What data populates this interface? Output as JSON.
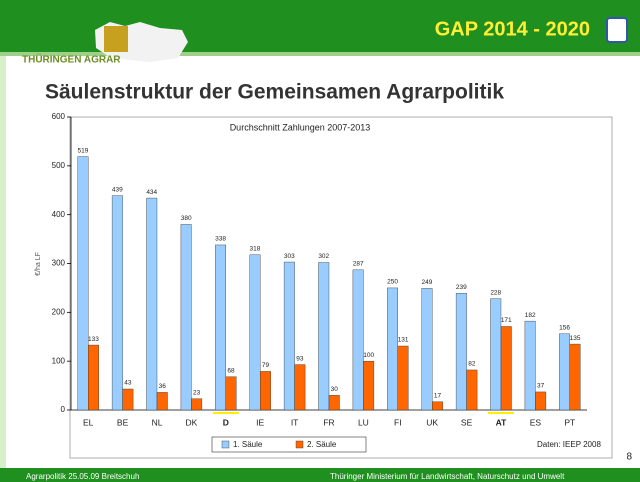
{
  "header": {
    "logo_text": "THÜRINGEN AGRAR",
    "title": "GAP 2014 - 2020"
  },
  "slide_title": "Säulenstruktur der Gemeinsamen Agrarpolitik",
  "chart_data": {
    "type": "bar",
    "subtitle": "Durchschnitt Zahlungen 2007-2013",
    "y_label": "€/ha LF",
    "categories": [
      "EL",
      "BE",
      "NL",
      "DK",
      "D",
      "IE",
      "IT",
      "FR",
      "LU",
      "FI",
      "UK",
      "SE",
      "AT",
      "ES",
      "PT"
    ],
    "bold_categories": [
      "D",
      "AT"
    ],
    "series": [
      {
        "name": "1. Säule",
        "color": "#99ccff",
        "values": [
          519,
          439,
          434,
          380,
          338,
          318,
          303,
          302,
          287,
          250,
          249,
          239,
          228,
          182,
          156
        ]
      },
      {
        "name": "2. Säule",
        "color": "#ff6600",
        "values": [
          133,
          43,
          36,
          23,
          68,
          79,
          93,
          30,
          100,
          131,
          17,
          82,
          171,
          37,
          135
        ]
      }
    ],
    "ylim": [
      0,
      600
    ],
    "yticks": [
      0,
      100,
      200,
      300,
      400,
      500,
      600
    ],
    "source": "Daten: IEEP 2008"
  },
  "page_number": "8",
  "footer": {
    "left": "Agrarpolitik 25.05.09 Breitschuh",
    "right": "Thüringer Ministerium für Landwirtschaft, Naturschutz und Umwelt"
  }
}
